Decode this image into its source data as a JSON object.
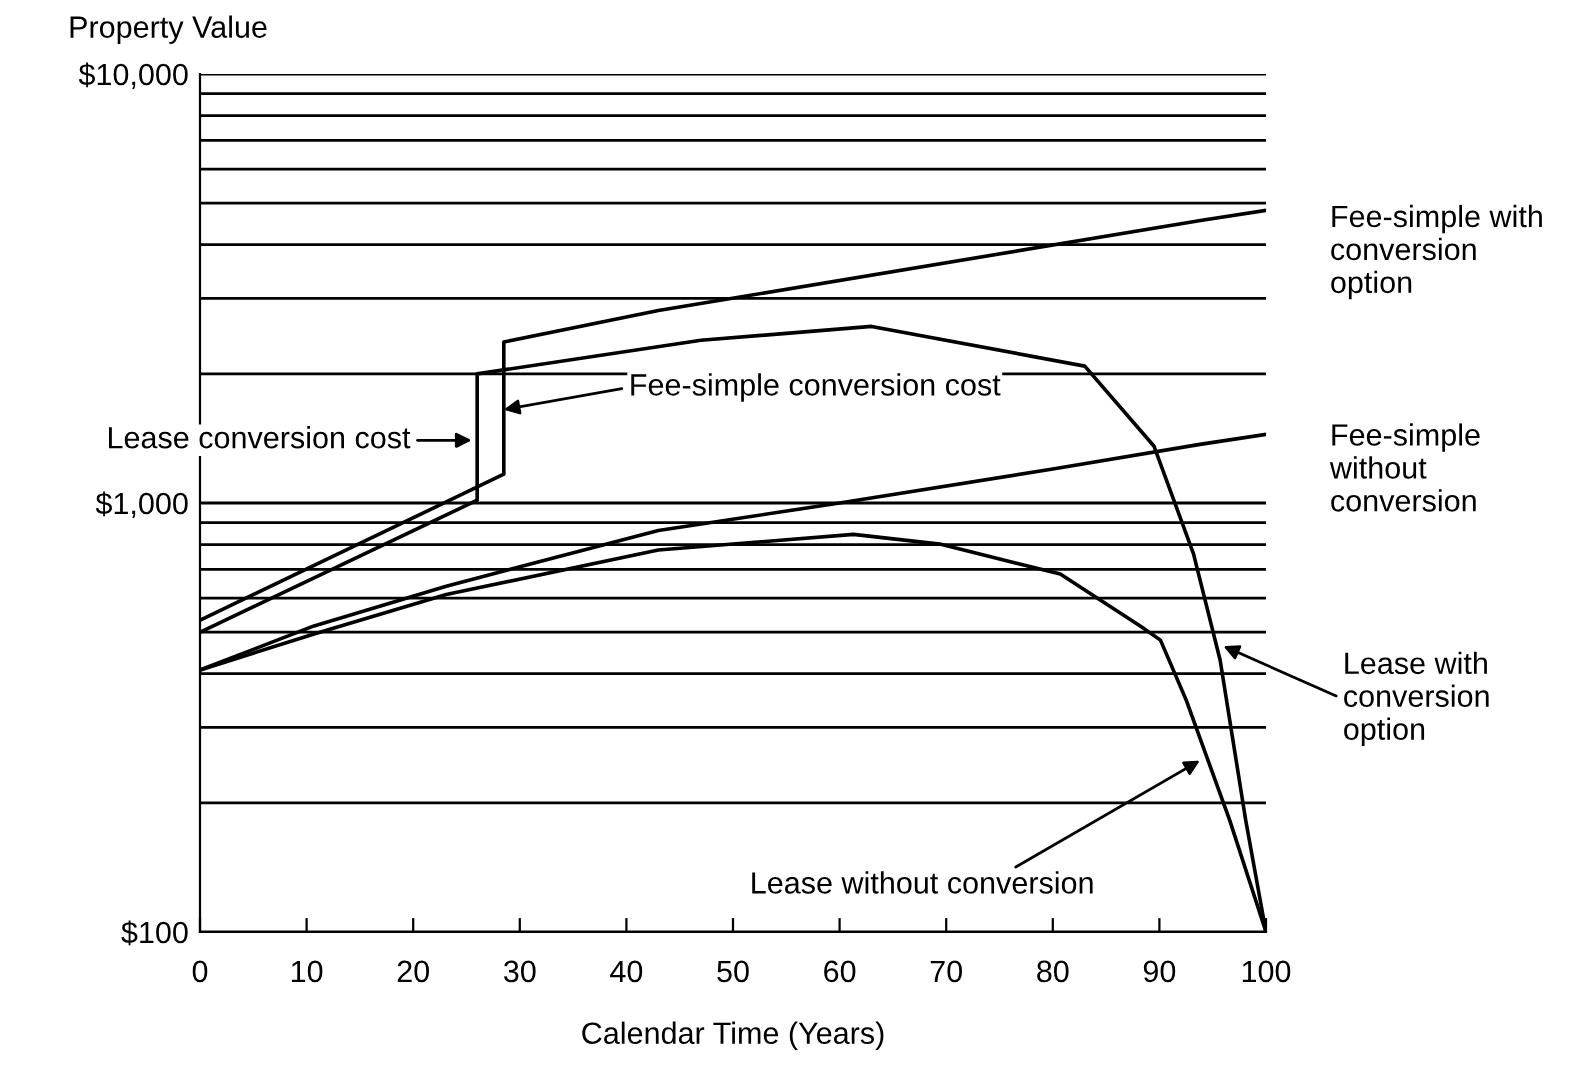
{
  "chart_data": {
    "type": "line",
    "xlabel": "Calendar Time (Years)",
    "ylabel": "Property Value",
    "log": "y",
    "grid": "y",
    "legend": false,
    "marker": "none",
    "line_style": "solid",
    "xlim": [
      0,
      100
    ],
    "xticks": [
      0,
      10,
      20,
      30,
      40,
      50,
      60,
      70,
      80,
      90,
      100
    ],
    "ylim": [
      100,
      10000
    ],
    "yticks": [
      {
        "value": 100,
        "label": "$100"
      },
      {
        "value": 200,
        "label": null
      },
      {
        "value": 300,
        "label": null
      },
      {
        "value": 400,
        "label": null
      },
      {
        "value": 500,
        "label": null
      },
      {
        "value": 600,
        "label": null
      },
      {
        "value": 700,
        "label": null
      },
      {
        "value": 800,
        "label": null
      },
      {
        "value": 900,
        "label": null
      },
      {
        "value": 1000,
        "label": "$1,000"
      },
      {
        "value": 2000,
        "label": null
      },
      {
        "value": 3000,
        "label": null
      },
      {
        "value": 4000,
        "label": null
      },
      {
        "value": 5000,
        "label": null
      },
      {
        "value": 6000,
        "label": null
      },
      {
        "value": 7000,
        "label": null
      },
      {
        "value": 8000,
        "label": null
      },
      {
        "value": 9000,
        "label": null
      },
      {
        "value": 10000,
        "label": "$10,000"
      }
    ],
    "series": [
      {
        "color": "#000000",
        "x": [
          0,
          28.5,
          28.5,
          43,
          94,
          100
        ],
        "values": [
          533,
          1167,
          2373,
          2810,
          4560,
          4810
        ]
      },
      {
        "color": "#000000",
        "x": [
          0,
          10.7,
          23.1,
          43,
          60,
          80,
          93.8,
          100
        ],
        "values": [
          408,
          517,
          640,
          863,
          1000,
          1200,
          1370,
          1445
        ]
      },
      {
        "color": "#000000",
        "x": [
          0,
          26,
          26,
          47,
          63,
          83,
          89.5,
          93.2,
          95.7,
          98.1,
          100
        ],
        "values": [
          500,
          1015,
          2000,
          2395,
          2580,
          2085,
          1356,
          761,
          430,
          182,
          100
        ]
      },
      {
        "color": "#000000",
        "x": [
          0,
          10.7,
          23.1,
          43,
          61.3,
          69.4,
          80.7,
          88.2,
          90.1,
          92.5,
          96.6,
          100
        ],
        "values": [
          408,
          495,
          612,
          777,
          845,
          802,
          683,
          517,
          479,
          348,
          182,
          100
        ]
      }
    ],
    "annotations": [
      {
        "text": "Lease conversion cost",
        "x": 26,
        "y": 1400
      },
      {
        "text": "Fee-simple conversion cost",
        "x": 28.5,
        "y": 1650
      },
      {
        "text": "Fee-simple with\nconversion\noption",
        "x": 100,
        "y": 4810
      },
      {
        "text": "Fee-simple\nwithout\nconversion",
        "x": 100,
        "y": 1445
      },
      {
        "text": "Lease with\nconversion\noption",
        "x": 96,
        "y": 464
      },
      {
        "text": "Lease without conversion",
        "x": 93.8,
        "y": 251
      }
    ]
  }
}
